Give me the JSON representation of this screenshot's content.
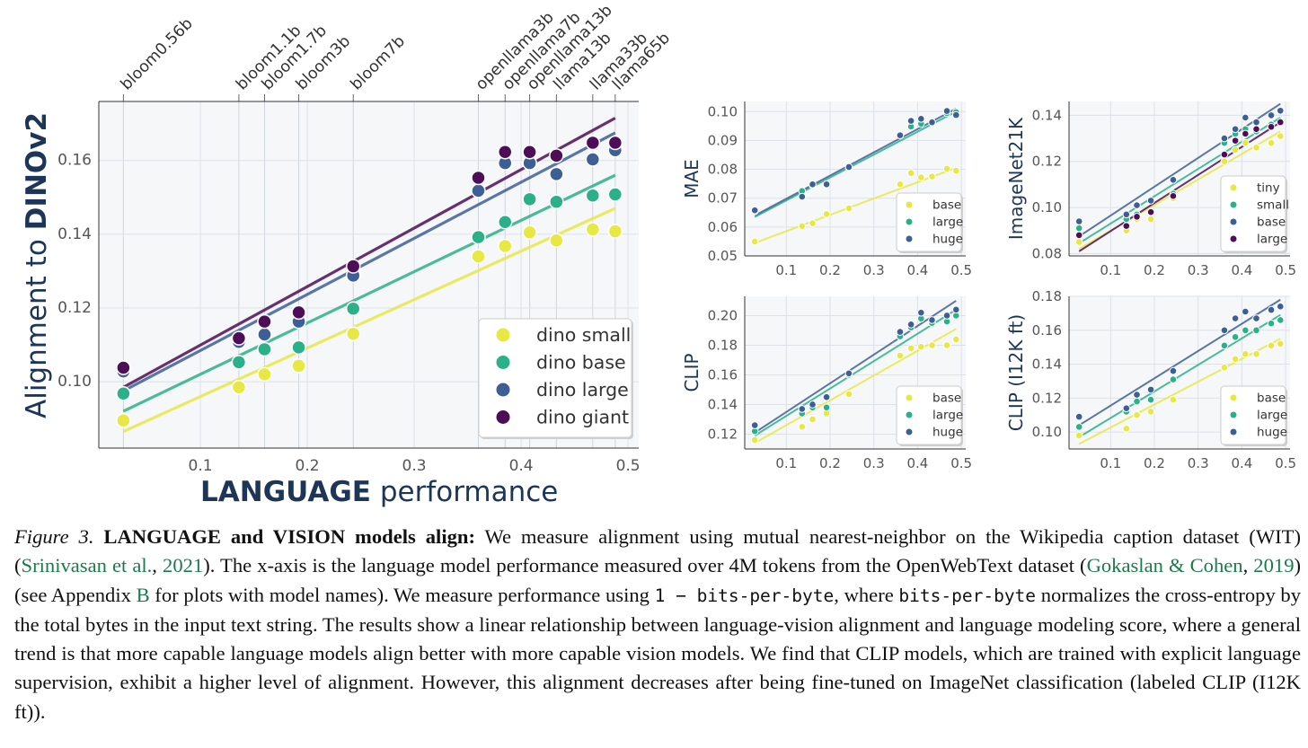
{
  "palette": {
    "tiny": "#e8e845",
    "small": "#2bb08a",
    "base": "#3d5f95",
    "large": "#4e0e57",
    "plot_bg": "#f5f7f9",
    "grid": "#dde2e8",
    "axis_text": "#1d3657"
  },
  "model_labels": [
    {
      "name": "bloom0.56b",
      "x": 0.028
    },
    {
      "name": "bloom1.1b",
      "x": 0.136
    },
    {
      "name": "bloom1.7b",
      "x": 0.16
    },
    {
      "name": "bloom3b",
      "x": 0.192
    },
    {
      "name": "bloom7b",
      "x": 0.243
    },
    {
      "name": "openllama3b",
      "x": 0.36
    },
    {
      "name": "openllama7b",
      "x": 0.385
    },
    {
      "name": "openllama13b",
      "x": 0.408
    },
    {
      "name": "llama13b",
      "x": 0.433
    },
    {
      "name": "llama33b",
      "x": 0.467
    },
    {
      "name": "llama65b",
      "x": 0.488
    }
  ],
  "chart_data": [
    {
      "id": "dinov2",
      "type": "scatter",
      "xlabel": {
        "bold": "LANGUAGE",
        "rest": " performance"
      },
      "ylabel": {
        "pre": "Alignment to ",
        "bold": "DINOv2"
      },
      "xlim": [
        0.005,
        0.51
      ],
      "ylim": [
        0.082,
        0.176
      ],
      "xticks": [
        "0.1",
        "0.2",
        "0.3",
        "0.4",
        "0.5"
      ],
      "yticks": [
        "0.10",
        "0.12",
        "0.14",
        "0.16"
      ],
      "legend_position": "bottom-right",
      "x": [
        0.028,
        0.136,
        0.16,
        0.192,
        0.243,
        0.36,
        0.385,
        0.408,
        0.433,
        0.467,
        0.488
      ],
      "series": [
        {
          "name": "dino small",
          "color_key": "tiny",
          "values": [
            0.0895,
            0.0985,
            0.102,
            0.1043,
            0.113,
            0.134,
            0.1368,
            0.1405,
            0.1383,
            0.1413,
            0.1408
          ],
          "fit": [
            0.0865,
            0.147
          ]
        },
        {
          "name": "dino base",
          "color_key": "small",
          "values": [
            0.0968,
            0.1053,
            0.1088,
            0.1093,
            0.1198,
            0.1392,
            0.1433,
            0.1495,
            0.1488,
            0.1505,
            0.1508
          ],
          "fit": [
            0.092,
            0.156
          ]
        },
        {
          "name": "dino large",
          "color_key": "base",
          "values": [
            0.1028,
            0.1108,
            0.1128,
            0.1163,
            0.1288,
            0.1518,
            0.1593,
            0.1593,
            0.1563,
            0.1603,
            0.1628
          ],
          "fit": [
            0.0975,
            0.1675
          ]
        },
        {
          "name": "dino giant",
          "color_key": "large",
          "values": [
            0.1038,
            0.1118,
            0.1163,
            0.1188,
            0.1313,
            0.1553,
            0.1623,
            0.1623,
            0.1613,
            0.1648,
            0.1648
          ],
          "fit": [
            0.0985,
            0.1715
          ]
        }
      ]
    },
    {
      "id": "mae",
      "type": "scatter",
      "ylabel": "MAE",
      "xlim": [
        0.005,
        0.51
      ],
      "ylim": [
        0.05,
        0.1035
      ],
      "xticks": [
        "0.1",
        "0.2",
        "0.3",
        "0.4",
        "0.5"
      ],
      "yticks": [
        "0.05",
        "0.06",
        "0.07",
        "0.08",
        "0.09",
        "0.10"
      ],
      "legend_position": "bottom-right",
      "x": [
        0.028,
        0.136,
        0.16,
        0.192,
        0.243,
        0.36,
        0.385,
        0.408,
        0.433,
        0.467,
        0.488
      ],
      "series": [
        {
          "name": "base",
          "color_key": "tiny",
          "values": [
            0.055,
            0.0603,
            0.0613,
            0.0645,
            0.0665,
            0.0748,
            0.0787,
            0.0772,
            0.0775,
            0.0802,
            0.0795
          ],
          "fit": [
            0.0545,
            0.0805
          ]
        },
        {
          "name": "large",
          "color_key": "small",
          "values": [
            0.0655,
            0.0725,
            0.0745,
            0.0748,
            0.0805,
            0.0918,
            0.0948,
            0.0958,
            0.0963,
            0.0995,
            0.0998
          ],
          "fit": [
            0.0635,
            0.1
          ]
        },
        {
          "name": "huge",
          "color_key": "base",
          "values": [
            0.0658,
            0.0705,
            0.0748,
            0.0748,
            0.0808,
            0.0918,
            0.0968,
            0.0975,
            0.0963,
            0.1002,
            0.0988
          ],
          "fit": [
            0.064,
            0.101
          ]
        }
      ]
    },
    {
      "id": "in21k",
      "type": "scatter",
      "ylabel": "ImageNet21K",
      "xlim": [
        0.005,
        0.51
      ],
      "ylim": [
        0.079,
        0.146
      ],
      "xticks": [
        "0.1",
        "0.2",
        "0.3",
        "0.4",
        "0.5"
      ],
      "yticks": [
        "0.08",
        "0.10",
        "0.12",
        "0.14"
      ],
      "legend_position": "bottom-right",
      "x": [
        0.028,
        0.136,
        0.16,
        0.192,
        0.243,
        0.36,
        0.385,
        0.408,
        0.433,
        0.467,
        0.488
      ],
      "series": [
        {
          "name": "tiny",
          "color_key": "tiny",
          "values": [
            0.085,
            0.09,
            0.095,
            0.095,
            0.104,
            0.12,
            0.125,
            0.128,
            0.126,
            0.128,
            0.131
          ],
          "fit": [
            0.082,
            0.133
          ]
        },
        {
          "name": "small",
          "color_key": "small",
          "values": [
            0.091,
            0.095,
            0.097,
            0.098,
            0.106,
            0.128,
            0.132,
            0.134,
            0.133,
            0.136,
            0.137
          ],
          "fit": [
            0.0845,
            0.139
          ]
        },
        {
          "name": "base",
          "color_key": "base",
          "values": [
            0.094,
            0.097,
            0.101,
            0.103,
            0.112,
            0.13,
            0.134,
            0.139,
            0.137,
            0.14,
            0.142
          ],
          "fit": [
            0.0875,
            0.145
          ]
        },
        {
          "name": "large",
          "color_key": "large",
          "values": [
            0.088,
            0.092,
            0.096,
            0.098,
            0.105,
            0.123,
            0.129,
            0.132,
            0.134,
            0.135,
            0.137
          ],
          "fit": [
            0.081,
            0.137
          ]
        }
      ]
    },
    {
      "id": "clip",
      "type": "scatter",
      "ylabel": "CLIP",
      "xlim": [
        0.005,
        0.51
      ],
      "ylim": [
        0.11,
        0.213
      ],
      "xticks": [
        "0.1",
        "0.2",
        "0.3",
        "0.4",
        "0.5"
      ],
      "yticks": [
        "0.12",
        "0.14",
        "0.16",
        "0.18",
        "0.20"
      ],
      "legend_position": "bottom-right",
      "x": [
        0.028,
        0.136,
        0.16,
        0.192,
        0.243,
        0.36,
        0.385,
        0.408,
        0.433,
        0.467,
        0.488
      ],
      "series": [
        {
          "name": "base",
          "color_key": "tiny",
          "values": [
            0.116,
            0.125,
            0.13,
            0.134,
            0.147,
            0.173,
            0.178,
            0.179,
            0.18,
            0.18,
            0.184
          ],
          "fit": [
            0.114,
            0.191
          ]
        },
        {
          "name": "large",
          "color_key": "small",
          "values": [
            0.122,
            0.134,
            0.138,
            0.138,
            0.16,
            0.186,
            0.192,
            0.198,
            0.195,
            0.196,
            0.2
          ],
          "fit": [
            0.119,
            0.204
          ]
        },
        {
          "name": "huge",
          "color_key": "base",
          "values": [
            0.126,
            0.137,
            0.14,
            0.145,
            0.161,
            0.189,
            0.194,
            0.202,
            0.197,
            0.2,
            0.204
          ],
          "fit": [
            0.121,
            0.21
          ]
        }
      ]
    },
    {
      "id": "clip_i12k",
      "type": "scatter",
      "ylabel": "CLIP (I12K ft)",
      "xlim": [
        0.005,
        0.51
      ],
      "ylim": [
        0.09,
        0.18
      ],
      "xticks": [
        "0.1",
        "0.2",
        "0.3",
        "0.4",
        "0.5"
      ],
      "yticks": [
        "0.10",
        "0.12",
        "0.14",
        "0.16",
        "0.18"
      ],
      "legend_position": "bottom-right",
      "x": [
        0.028,
        0.136,
        0.16,
        0.192,
        0.243,
        0.36,
        0.385,
        0.408,
        0.433,
        0.467,
        0.488
      ],
      "series": [
        {
          "name": "base",
          "color_key": "tiny",
          "values": [
            0.098,
            0.102,
            0.11,
            0.112,
            0.119,
            0.138,
            0.143,
            0.146,
            0.146,
            0.151,
            0.152
          ],
          "fit": [
            0.093,
            0.155
          ]
        },
        {
          "name": "large",
          "color_key": "small",
          "values": [
            0.103,
            0.112,
            0.118,
            0.119,
            0.131,
            0.151,
            0.156,
            0.16,
            0.16,
            0.164,
            0.166
          ],
          "fit": [
            0.097,
            0.169
          ]
        },
        {
          "name": "huge",
          "color_key": "base",
          "values": [
            0.109,
            0.114,
            0.122,
            0.125,
            0.136,
            0.16,
            0.167,
            0.171,
            0.167,
            0.172,
            0.174
          ],
          "fit": [
            0.104,
            0.178
          ]
        }
      ]
    }
  ],
  "caption": {
    "label": "Figure 3.",
    "heading": "LANGUAGE and VISION models align:",
    "t1": " We measure alignment using mutual nearest-neighbor on the Wikipedia caption dataset (WIT) (",
    "cite1a": "Srinivasan et al.",
    "sep1": ", ",
    "cite1b": "2021",
    "t2": "). The x-axis is the language model performance measured over 4M tokens from the OpenWebText dataset (",
    "cite2a": "Gokaslan & Cohen",
    "sep2": ", ",
    "cite2b": "2019",
    "t3": ") (see Appendix ",
    "appendix": "B",
    "t4": " for plots with model names). We measure performance using ",
    "code1": "1 − bits-per-byte",
    "t5": ", where ",
    "code2": "bits-per-byte",
    "t6": " normalizes the cross-entropy by the total bytes in the input text string. The results show a linear relationship between language-vision alignment and language modeling score, where a general trend is that more capable language models align better with more capable vision models. We find that CLIP models, which are trained with explicit language supervision, exhibit a higher level of alignment. However, this alignment decreases after being fine-tuned on ImageNet classification (labeled CLIP (I12K ft))."
  }
}
